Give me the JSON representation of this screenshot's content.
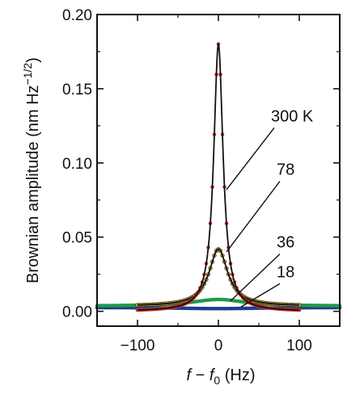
{
  "chart_data": {
    "type": "line",
    "xlabel": {
      "pre": "f",
      "mid": " − ",
      "var": "f",
      "sub": "0",
      "post": " (Hz)"
    },
    "ylabel": {
      "main": "Brownian amplitude (nm Hz",
      "sup": "−1/2",
      "close": ")"
    },
    "xlim": [
      -150,
      150
    ],
    "ylim": [
      -0.01,
      0.2
    ],
    "x_ticks": [
      -100,
      0,
      100
    ],
    "x_tick_labels": [
      "−100",
      "0",
      "100"
    ],
    "y_ticks": [
      0.0,
      0.05,
      0.1,
      0.15,
      0.2
    ],
    "y_tick_labels": [
      "0.00",
      "0.05",
      "0.10",
      "0.15",
      "0.20"
    ],
    "grid": false,
    "legend": "none",
    "series": [
      {
        "name": "300 K",
        "peak": 0.18,
        "hwhm": 7.0,
        "baseline": 0.0,
        "x_range": [
          -100,
          100
        ],
        "marker_color": "#cc2a2a",
        "fit_color": "#111111"
      },
      {
        "name": "78",
        "peak": 0.042,
        "hwhm": 14.0,
        "baseline": 0.0035,
        "x_range": [
          -100,
          100
        ],
        "marker_color": "#c8b020",
        "fit_color": "#111111"
      },
      {
        "name": "36",
        "peak": 0.008,
        "hwhm": 40.0,
        "baseline": 0.0035,
        "x_range": [
          -150,
          150
        ],
        "marker_color": "#1f9a4a",
        "fit_color": "#1f9a4a"
      },
      {
        "name": "18",
        "peak": 0.0018,
        "hwhm": 60.0,
        "baseline": 0.0026,
        "x_range": [
          -150,
          150
        ],
        "marker_color": "#1e3f8c",
        "fit_color": "#1e3f8c"
      }
    ],
    "annotations": [
      {
        "text": "300 K",
        "text_at": [
          65,
          0.128
        ],
        "points_to": [
          10,
          0.082
        ]
      },
      {
        "text": "78",
        "text_at": [
          72,
          0.092
        ],
        "points_to": [
          10,
          0.04
        ]
      },
      {
        "text": "36",
        "text_at": [
          72,
          0.043
        ],
        "points_to": [
          15,
          0.007
        ]
      },
      {
        "text": "18",
        "text_at": [
          72,
          0.023
        ],
        "points_to": [
          28,
          0.003
        ]
      }
    ]
  }
}
